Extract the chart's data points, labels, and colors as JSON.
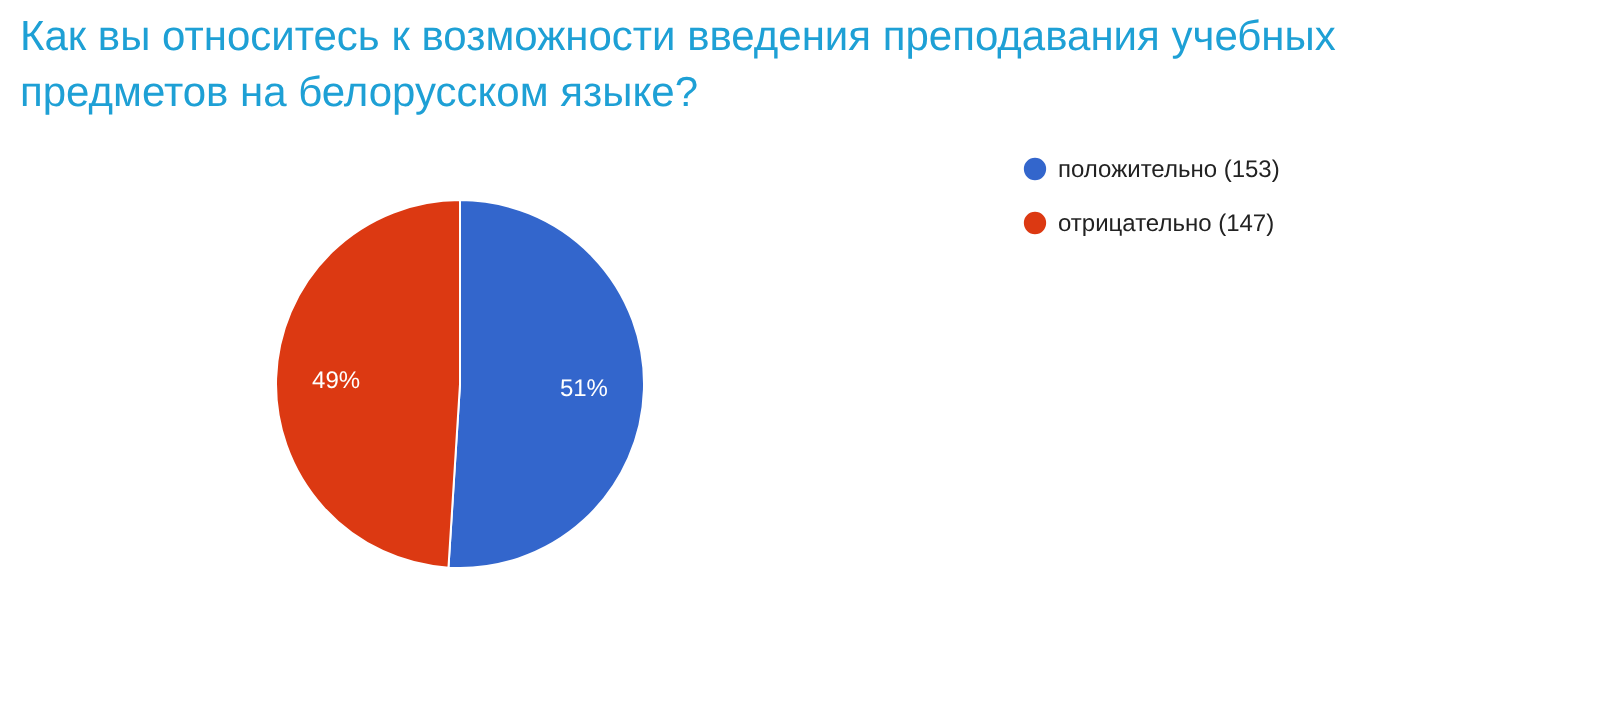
{
  "chart_data": {
    "type": "pie",
    "title": "Как вы относитесь к возможности введения преподавания учебных предметов на белорусском языке?",
    "categories": [
      "положительно (153)",
      "отрицательно (147)"
    ],
    "values": [
      51,
      49
    ],
    "value_labels": [
      "51%",
      "49%"
    ],
    "colors": [
      "#3366cc",
      "#dc3912"
    ],
    "legend": "right"
  }
}
